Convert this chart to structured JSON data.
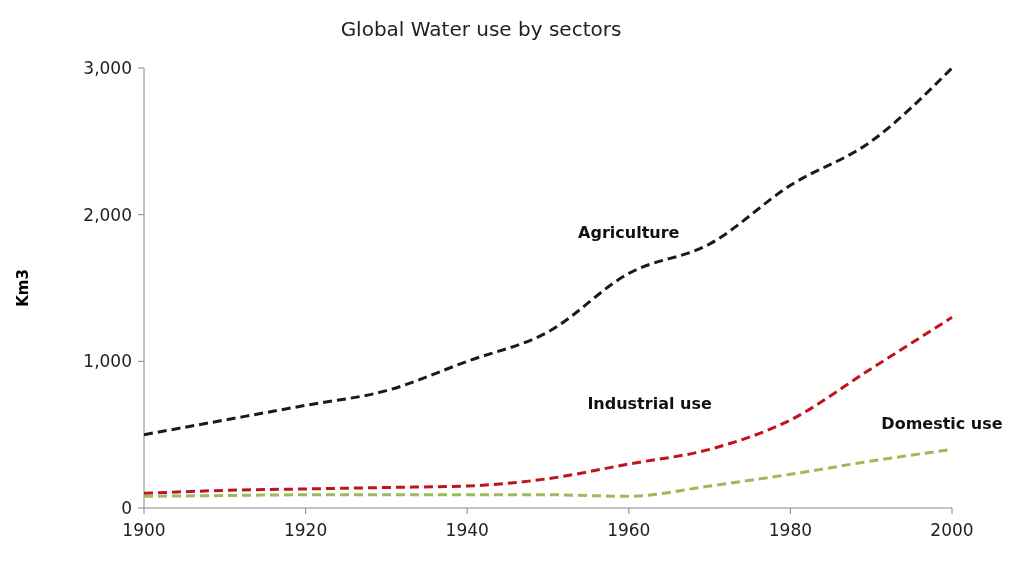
{
  "chart_data": {
    "type": "line",
    "title": "Global Water use by sectors",
    "ylabel": "Km3",
    "x": [
      1900,
      1910,
      1920,
      1930,
      1940,
      1950,
      1960,
      1970,
      1980,
      1990,
      2000
    ],
    "series": [
      {
        "name": "Agriculture",
        "color": "#1a1a1a",
        "values": [
          500,
          600,
          700,
          800,
          1000,
          1200,
          1600,
          1800,
          2200,
          2500,
          3000
        ]
      },
      {
        "name": "Industrial use",
        "color": "#c0141c",
        "values": [
          100,
          120,
          130,
          140,
          150,
          200,
          300,
          400,
          600,
          950,
          1300
        ]
      },
      {
        "name": "Domestic use",
        "color": "#9bbb59",
        "values": [
          80,
          85,
          90,
          90,
          90,
          90,
          80,
          150,
          230,
          320,
          400
        ]
      }
    ],
    "xlim": [
      1900,
      2000
    ],
    "xticks": [
      1900,
      1920,
      1940,
      1960,
      1980,
      2000
    ],
    "ylim": [
      0,
      3000
    ],
    "yticks": [
      0,
      {
        "value": 1000,
        "label": "1,000"
      },
      {
        "value": 2000,
        "label": "2,000"
      },
      {
        "value": 3000,
        "label": "3,000"
      }
    ],
    "line_style": "dashed",
    "marker": "none",
    "grid": false
  }
}
